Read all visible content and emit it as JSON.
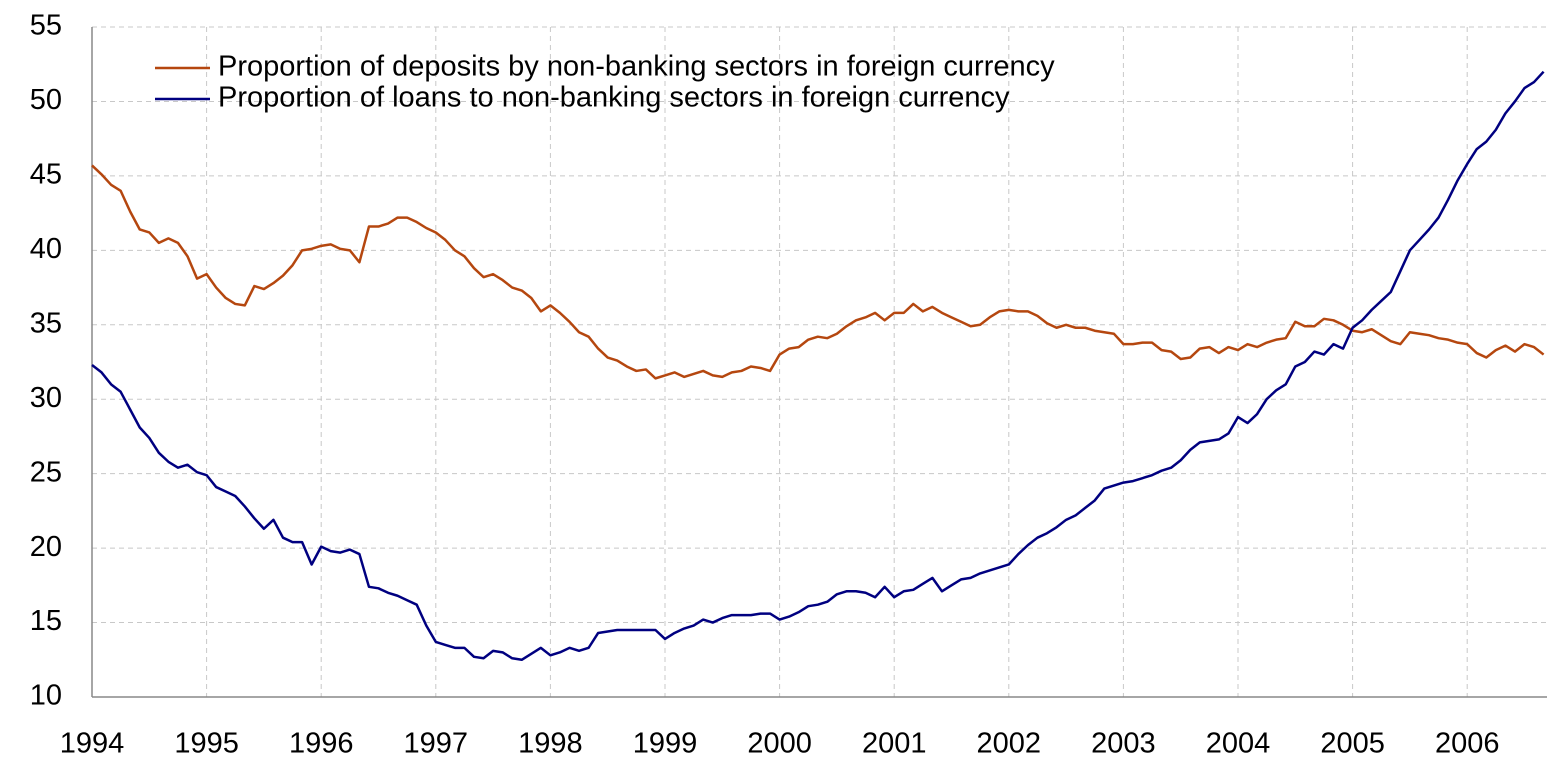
{
  "chart_data": {
    "type": "line",
    "categories": [
      "1994",
      null,
      null,
      null,
      null,
      null,
      null,
      null,
      null,
      null,
      null,
      null,
      "1995",
      null,
      null,
      null,
      null,
      null,
      null,
      null,
      null,
      null,
      null,
      null,
      "1996",
      null,
      null,
      null,
      null,
      null,
      null,
      null,
      null,
      null,
      null,
      null,
      "1997",
      null,
      null,
      null,
      null,
      null,
      null,
      null,
      null,
      null,
      null,
      null,
      "1998",
      null,
      null,
      null,
      null,
      null,
      null,
      null,
      null,
      null,
      null,
      null,
      "1999",
      null,
      null,
      null,
      null,
      null,
      null,
      null,
      null,
      null,
      null,
      null,
      "2000",
      null,
      null,
      null,
      null,
      null,
      null,
      null,
      null,
      null,
      null,
      null,
      "2001",
      null,
      null,
      null,
      null,
      null,
      null,
      null,
      null,
      null,
      null,
      null,
      "2002",
      null,
      null,
      null,
      null,
      null,
      null,
      null,
      null,
      null,
      null,
      null,
      "2003",
      null,
      null,
      null,
      null,
      null,
      null,
      null,
      null,
      null,
      null,
      null,
      "2004",
      null,
      null,
      null,
      null,
      null,
      null,
      null,
      null,
      null,
      null,
      null,
      "2005",
      null,
      null,
      null,
      null,
      null,
      null,
      null,
      null,
      null,
      null,
      null,
      "2006",
      null,
      null,
      null,
      null,
      null,
      null,
      null,
      null
    ],
    "series": [
      {
        "name": "Proportion of deposits by non-banking sectors in foreign currency",
        "color": "#b5470f",
        "values": [
          45.7,
          45.1,
          44.4,
          44.0,
          42.6,
          41.4,
          41.2,
          40.5,
          40.8,
          40.5,
          39.6,
          38.1,
          38.4,
          37.5,
          36.8,
          36.4,
          36.3,
          37.6,
          37.4,
          37.8,
          38.3,
          39.0,
          40.0,
          40.1,
          40.3,
          40.4,
          40.1,
          40.0,
          39.2,
          41.6,
          41.6,
          41.8,
          42.2,
          42.2,
          41.9,
          41.5,
          41.2,
          40.7,
          40.0,
          39.6,
          38.8,
          38.2,
          38.4,
          38.0,
          37.5,
          37.3,
          36.8,
          35.9,
          36.3,
          35.8,
          35.2,
          34.5,
          34.2,
          33.4,
          32.8,
          32.6,
          32.2,
          31.9,
          32.0,
          31.4,
          31.6,
          31.8,
          31.5,
          31.7,
          31.9,
          31.6,
          31.5,
          31.8,
          31.9,
          32.2,
          32.1,
          31.9,
          33.0,
          33.4,
          33.5,
          34.0,
          34.2,
          34.1,
          34.4,
          34.9,
          35.3,
          35.5,
          35.8,
          35.3,
          35.8,
          35.8,
          36.4,
          35.9,
          36.2,
          35.8,
          35.5,
          35.2,
          34.9,
          35.0,
          35.5,
          35.9,
          36.0,
          35.9,
          35.9,
          35.6,
          35.1,
          34.8,
          35.0,
          34.8,
          34.8,
          34.6,
          34.5,
          34.4,
          33.7,
          33.7,
          33.8,
          33.8,
          33.3,
          33.2,
          32.7,
          32.8,
          33.4,
          33.5,
          33.1,
          33.5,
          33.3,
          33.7,
          33.5,
          33.8,
          34.0,
          34.1,
          35.2,
          34.9,
          34.9,
          35.4,
          35.3,
          35.0,
          34.6,
          34.5,
          34.7,
          34.3,
          33.9,
          33.7,
          34.5,
          34.4,
          34.3,
          34.1,
          34.0,
          33.8,
          33.7,
          33.1,
          32.8,
          33.3,
          33.6,
          33.2,
          33.7,
          33.5,
          33.0
        ]
      },
      {
        "name": "Proportion of loans to non-banking sectors in foreign currency",
        "color": "#000080",
        "values": [
          32.3,
          31.8,
          31.0,
          30.5,
          29.3,
          28.1,
          27.4,
          26.4,
          25.8,
          25.4,
          25.6,
          25.1,
          24.9,
          24.1,
          23.8,
          23.5,
          22.8,
          22.0,
          21.3,
          21.9,
          20.7,
          20.4,
          20.4,
          18.9,
          20.1,
          19.8,
          19.7,
          19.9,
          19.6,
          17.4,
          17.3,
          17.0,
          16.8,
          16.5,
          16.2,
          14.8,
          13.7,
          13.5,
          13.3,
          13.3,
          12.7,
          12.6,
          13.1,
          13.0,
          12.6,
          12.5,
          12.9,
          13.3,
          12.8,
          13.0,
          13.3,
          13.1,
          13.3,
          14.3,
          14.4,
          14.5,
          14.5,
          14.5,
          14.5,
          14.5,
          13.9,
          14.3,
          14.6,
          14.8,
          15.2,
          15.0,
          15.3,
          15.5,
          15.5,
          15.5,
          15.6,
          15.6,
          15.2,
          15.4,
          15.7,
          16.1,
          16.2,
          16.4,
          16.9,
          17.1,
          17.1,
          17.0,
          16.7,
          17.4,
          16.7,
          17.1,
          17.2,
          17.6,
          18.0,
          17.1,
          17.5,
          17.9,
          18.0,
          18.3,
          18.5,
          18.7,
          18.9,
          19.6,
          20.2,
          20.7,
          21.0,
          21.4,
          21.9,
          22.2,
          22.7,
          23.2,
          24.0,
          24.2,
          24.4,
          24.5,
          24.7,
          24.9,
          25.2,
          25.4,
          25.9,
          26.6,
          27.1,
          27.2,
          27.3,
          27.7,
          28.8,
          28.4,
          29.0,
          30.0,
          30.6,
          31.0,
          32.2,
          32.5,
          33.2,
          33.0,
          33.7,
          33.4,
          34.8,
          35.3,
          36.0,
          36.6,
          37.2,
          38.6,
          40.0,
          40.7,
          41.4,
          42.2,
          43.4,
          44.7,
          45.8,
          46.8,
          47.3,
          48.1,
          49.2,
          50.0,
          50.9,
          51.3,
          52.0
        ]
      }
    ],
    "ylim": [
      10,
      55
    ],
    "yticks": [
      10,
      15,
      20,
      25,
      30,
      35,
      40,
      45,
      50,
      55
    ],
    "grid": true,
    "legend": "top-left"
  }
}
